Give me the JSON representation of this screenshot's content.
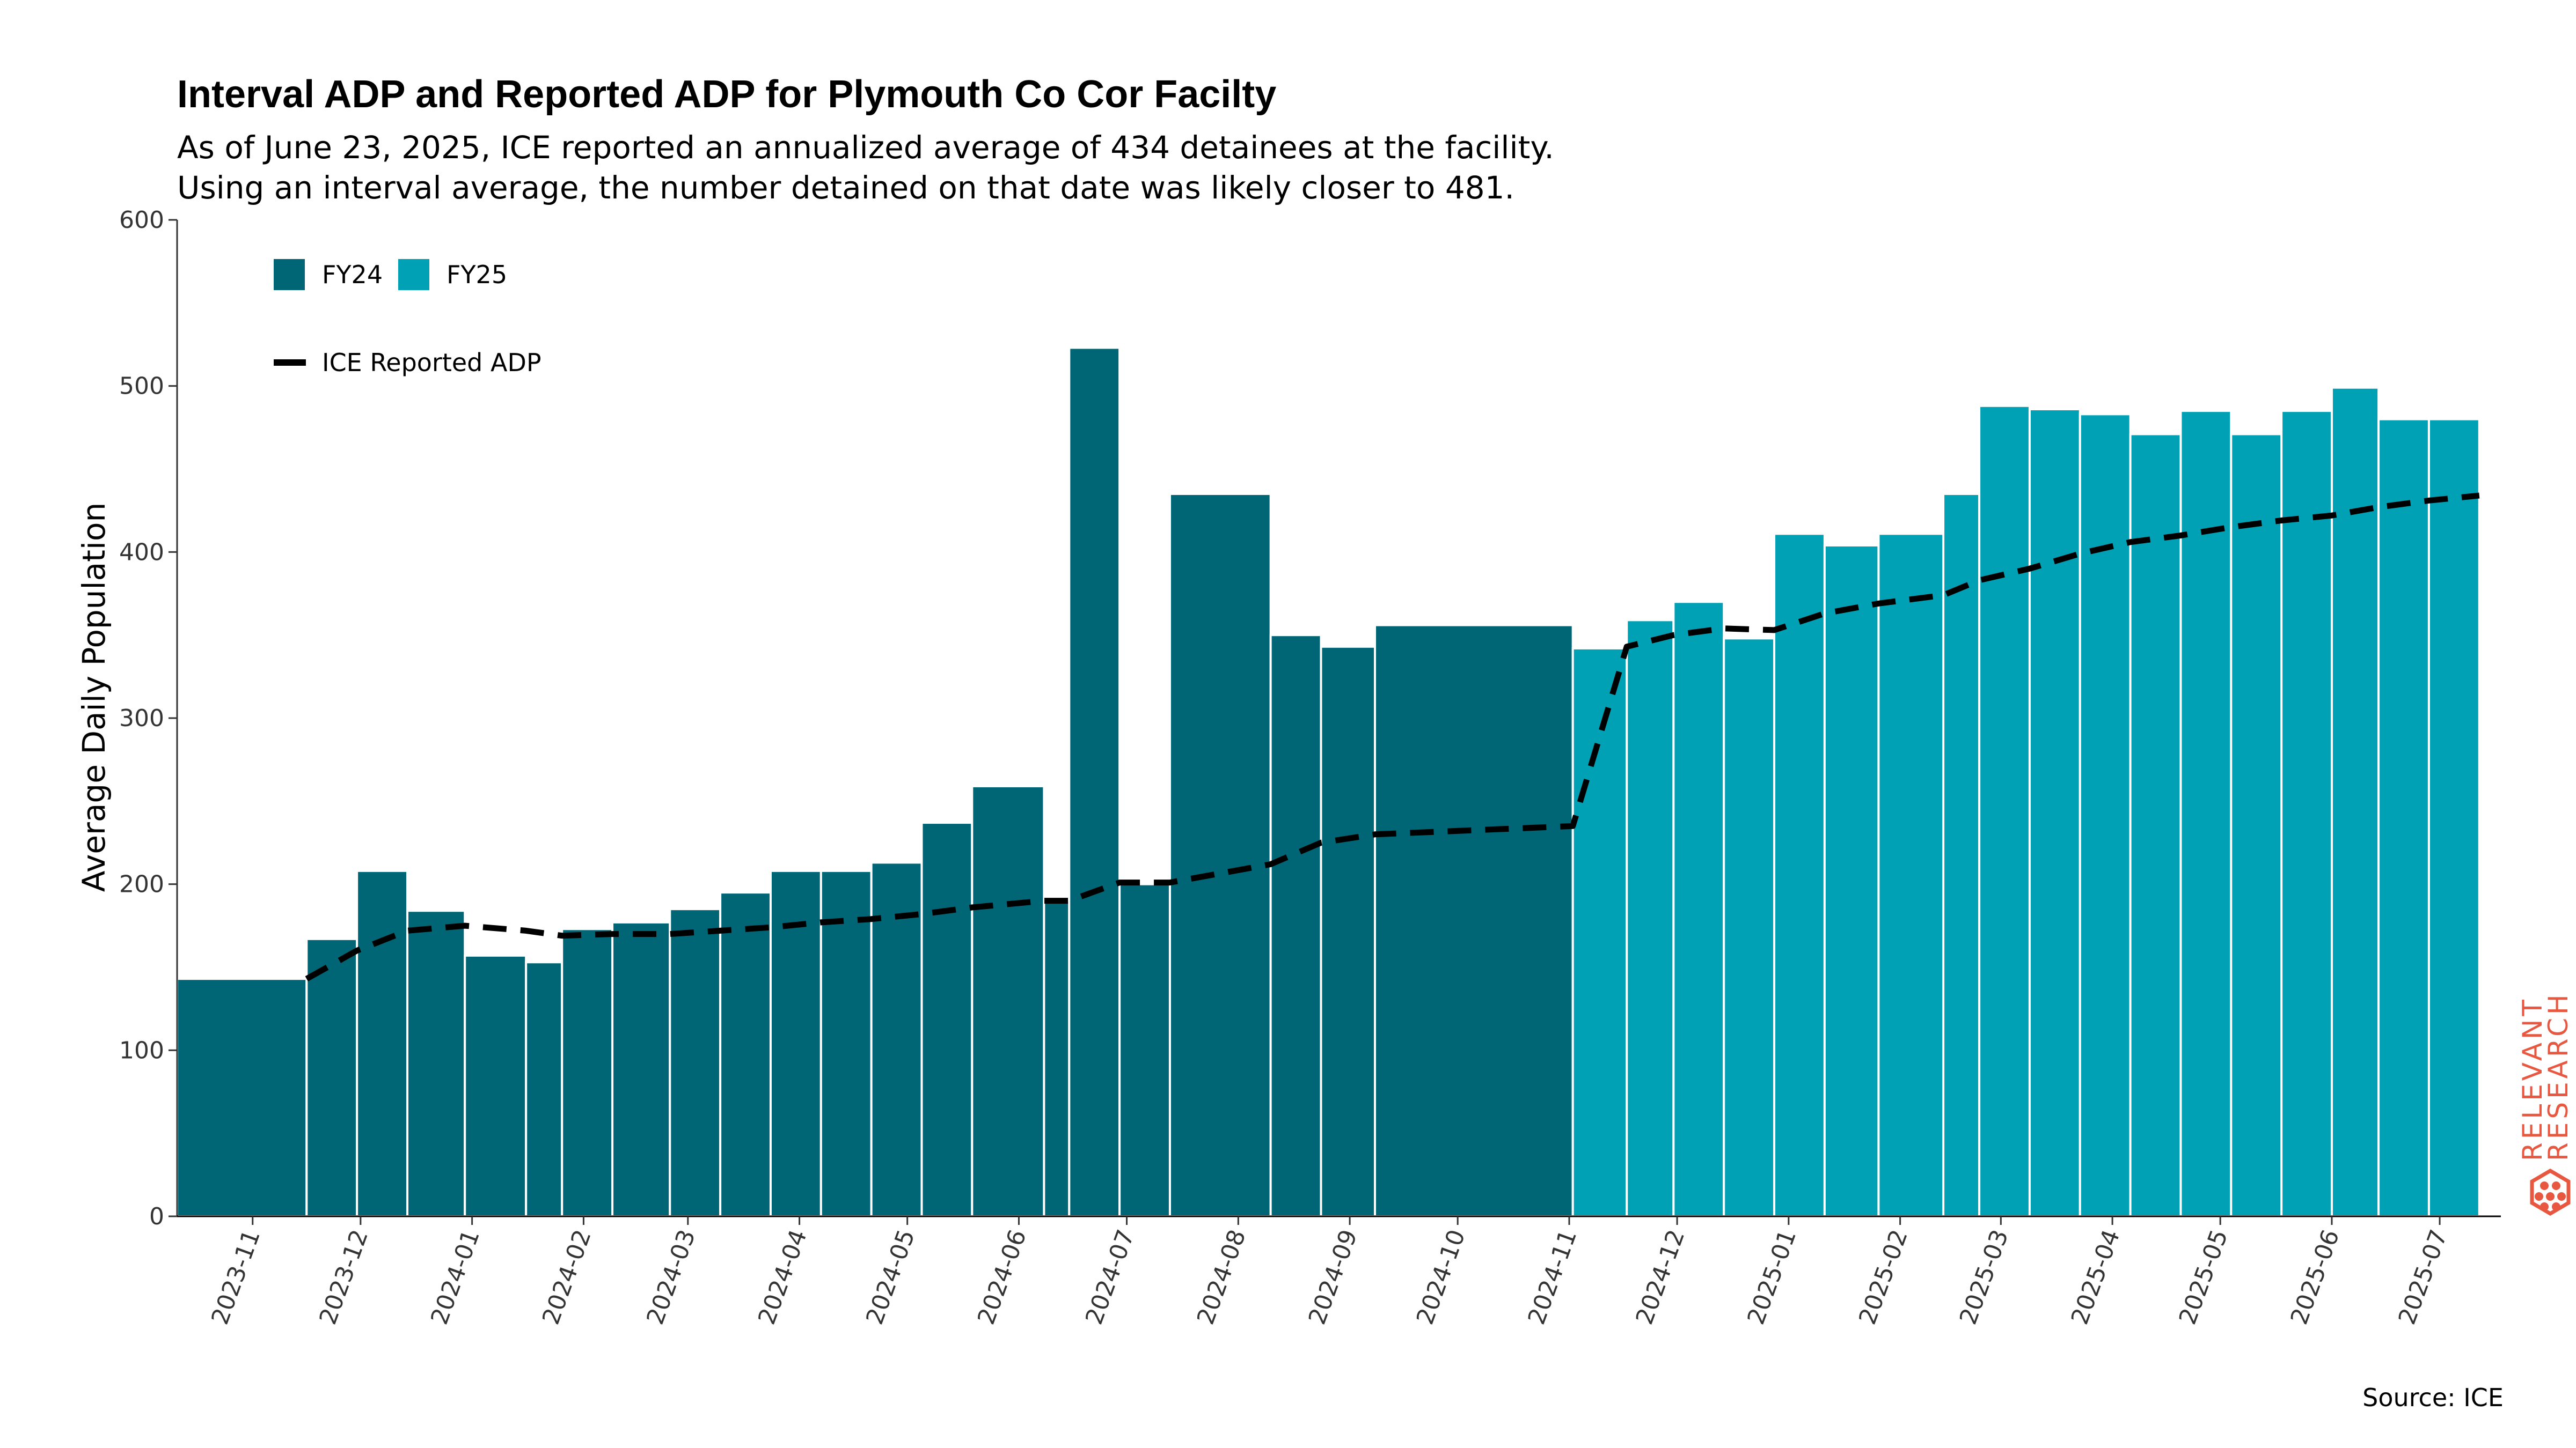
{
  "chart_data": {
    "type": "bar",
    "title": "Interval ADP and Reported ADP for Plymouth Co Cor Facilty",
    "subtitle_lines": [
      "As of June 23, 2025, ICE reported an annualized average of 434 detainees at the facility.",
      "Using an interval average, the number detained on that date was likely closer to 481."
    ],
    "ylabel": "Average Daily Population",
    "xlabel": "",
    "ylim": [
      0,
      600
    ],
    "y_ticks": [
      0,
      100,
      200,
      300,
      400,
      500,
      600
    ],
    "xlim": [
      "2023-10-11",
      "2025-07-18"
    ],
    "x_ticks": [
      "2023-11",
      "2023-12",
      "2024-01",
      "2024-02",
      "2024-03",
      "2024-04",
      "2024-05",
      "2024-06",
      "2024-07",
      "2024-08",
      "2024-09",
      "2024-10",
      "2024-11",
      "2024-12",
      "2025-01",
      "2025-02",
      "2025-03",
      "2025-04",
      "2025-05",
      "2025-06",
      "2025-07"
    ],
    "series": [
      {
        "name": "FY24",
        "color": "#006575",
        "bars": [
          {
            "start": "2023-10-11",
            "end": "2023-11-16",
            "value": 143
          },
          {
            "start": "2023-11-16",
            "end": "2023-11-30",
            "value": 167
          },
          {
            "start": "2023-11-30",
            "end": "2023-12-14",
            "value": 208
          },
          {
            "start": "2023-12-14",
            "end": "2023-12-30",
            "value": 184
          },
          {
            "start": "2023-12-30",
            "end": "2024-01-16",
            "value": 157
          },
          {
            "start": "2024-01-16",
            "end": "2024-01-26",
            "value": 153
          },
          {
            "start": "2024-01-26",
            "end": "2024-02-09",
            "value": 173
          },
          {
            "start": "2024-02-09",
            "end": "2024-02-25",
            "value": 177
          },
          {
            "start": "2024-02-25",
            "end": "2024-03-10",
            "value": 185
          },
          {
            "start": "2024-03-10",
            "end": "2024-03-24",
            "value": 195
          },
          {
            "start": "2024-03-24",
            "end": "2024-04-07",
            "value": 208
          },
          {
            "start": "2024-04-07",
            "end": "2024-04-21",
            "value": 208
          },
          {
            "start": "2024-04-21",
            "end": "2024-05-05",
            "value": 213
          },
          {
            "start": "2024-05-05",
            "end": "2024-05-19",
            "value": 237
          },
          {
            "start": "2024-05-19",
            "end": "2024-06-08",
            "value": 259
          },
          {
            "start": "2024-06-08",
            "end": "2024-06-15",
            "value": 190
          },
          {
            "start": "2024-06-15",
            "end": "2024-06-29",
            "value": 523
          },
          {
            "start": "2024-06-29",
            "end": "2024-07-13",
            "value": 200
          },
          {
            "start": "2024-07-13",
            "end": "2024-08-10",
            "value": 435
          },
          {
            "start": "2024-08-10",
            "end": "2024-08-24",
            "value": 350
          },
          {
            "start": "2024-08-24",
            "end": "2024-09-08",
            "value": 343
          },
          {
            "start": "2024-09-08",
            "end": "2024-11-02",
            "value": 356
          }
        ]
      },
      {
        "name": "FY25",
        "color": "#00a0b5",
        "bars": [
          {
            "start": "2024-11-02",
            "end": "2024-11-17",
            "value": 342
          },
          {
            "start": "2024-11-17",
            "end": "2024-11-30",
            "value": 359
          },
          {
            "start": "2024-11-30",
            "end": "2024-12-14",
            "value": 370
          },
          {
            "start": "2024-12-14",
            "end": "2024-12-28",
            "value": 348
          },
          {
            "start": "2024-12-28",
            "end": "2025-01-11",
            "value": 411
          },
          {
            "start": "2025-01-11",
            "end": "2025-01-26",
            "value": 404
          },
          {
            "start": "2025-01-26",
            "end": "2025-02-13",
            "value": 411
          },
          {
            "start": "2025-02-13",
            "end": "2025-02-23",
            "value": 435
          },
          {
            "start": "2025-02-23",
            "end": "2025-03-09",
            "value": 488
          },
          {
            "start": "2025-03-09",
            "end": "2025-03-23",
            "value": 486
          },
          {
            "start": "2025-03-23",
            "end": "2025-04-06",
            "value": 483
          },
          {
            "start": "2025-04-06",
            "end": "2025-04-20",
            "value": 471
          },
          {
            "start": "2025-04-20",
            "end": "2025-05-04",
            "value": 485
          },
          {
            "start": "2025-05-04",
            "end": "2025-05-18",
            "value": 471
          },
          {
            "start": "2025-05-18",
            "end": "2025-06-01",
            "value": 485
          },
          {
            "start": "2025-06-01",
            "end": "2025-06-14",
            "value": 499
          },
          {
            "start": "2025-06-14",
            "end": "2025-06-28",
            "value": 480
          },
          {
            "start": "2025-06-28",
            "end": "2025-07-12",
            "value": 480
          }
        ]
      }
    ],
    "line": {
      "name": "ICE Reported ADP",
      "color": "#000000",
      "style": "dashed",
      "points": [
        {
          "x": "2023-11-16",
          "y": 143
        },
        {
          "x": "2023-11-30",
          "y": 160
        },
        {
          "x": "2023-12-14",
          "y": 172
        },
        {
          "x": "2023-12-30",
          "y": 175
        },
        {
          "x": "2024-01-16",
          "y": 172
        },
        {
          "x": "2024-01-26",
          "y": 169
        },
        {
          "x": "2024-02-09",
          "y": 170
        },
        {
          "x": "2024-02-25",
          "y": 170
        },
        {
          "x": "2024-03-10",
          "y": 172
        },
        {
          "x": "2024-03-24",
          "y": 174
        },
        {
          "x": "2024-04-07",
          "y": 177
        },
        {
          "x": "2024-04-21",
          "y": 179
        },
        {
          "x": "2024-05-05",
          "y": 182
        },
        {
          "x": "2024-05-19",
          "y": 186
        },
        {
          "x": "2024-06-08",
          "y": 190
        },
        {
          "x": "2024-06-15",
          "y": 190
        },
        {
          "x": "2024-06-29",
          "y": 201
        },
        {
          "x": "2024-07-13",
          "y": 201
        },
        {
          "x": "2024-08-10",
          "y": 212
        },
        {
          "x": "2024-08-24",
          "y": 225
        },
        {
          "x": "2024-09-08",
          "y": 230
        },
        {
          "x": "2024-11-02",
          "y": 235
        },
        {
          "x": "2024-11-17",
          "y": 343
        },
        {
          "x": "2024-11-30",
          "y": 350
        },
        {
          "x": "2024-12-14",
          "y": 354
        },
        {
          "x": "2024-12-28",
          "y": 353
        },
        {
          "x": "2025-01-11",
          "y": 363
        },
        {
          "x": "2025-01-26",
          "y": 369
        },
        {
          "x": "2025-02-13",
          "y": 374
        },
        {
          "x": "2025-02-23",
          "y": 383
        },
        {
          "x": "2025-03-09",
          "y": 390
        },
        {
          "x": "2025-03-23",
          "y": 399
        },
        {
          "x": "2025-04-06",
          "y": 406
        },
        {
          "x": "2025-04-20",
          "y": 410
        },
        {
          "x": "2025-05-04",
          "y": 415
        },
        {
          "x": "2025-05-18",
          "y": 419
        },
        {
          "x": "2025-06-01",
          "y": 422
        },
        {
          "x": "2025-06-14",
          "y": 427
        },
        {
          "x": "2025-06-28",
          "y": 431
        },
        {
          "x": "2025-07-12",
          "y": 434
        }
      ]
    },
    "legend": {
      "placement": "top-left",
      "bar_entries": [
        "FY24",
        "FY25"
      ],
      "line_entry": "ICE Reported ADP"
    },
    "grid": false,
    "source": "Source: ICE"
  },
  "branding": {
    "line1": "RELEVANT",
    "line2": "RESEARCH",
    "color": "#e8573f"
  }
}
